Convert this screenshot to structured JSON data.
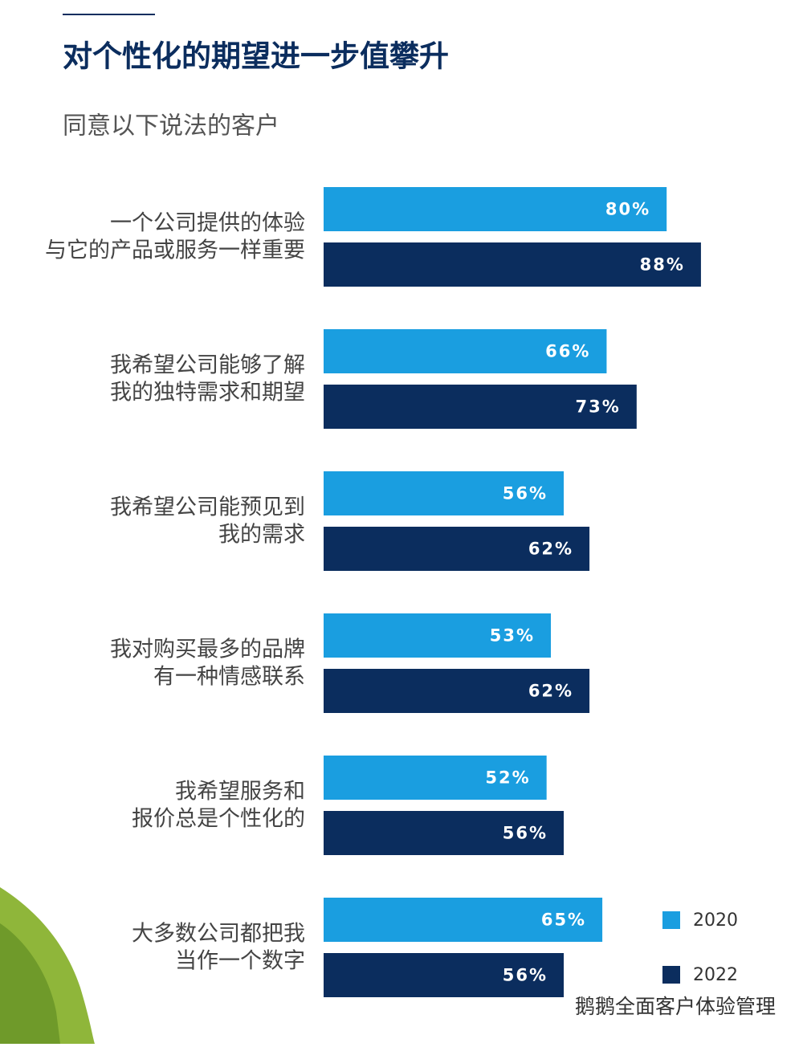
{
  "chart_data": {
    "type": "bar",
    "orientation": "horizontal",
    "title": "对个性化的期望进一步值攀升",
    "subtitle": "同意以下说法的客户",
    "categories": [
      [
        "一个公司提供的体验",
        "与它的产品或服务一样重要"
      ],
      [
        "我希望公司能够了解",
        "我的独特需求和期望"
      ],
      [
        "我希望公司能预见到",
        "我的需求"
      ],
      [
        "我对购买最多的品牌",
        "有一种情感联系"
      ],
      [
        "我希望服务和",
        "报价总是个性化的"
      ],
      [
        "大多数公司都把我",
        "当作一个数字"
      ]
    ],
    "series": [
      {
        "name": "2020",
        "color": "#1a9ee0",
        "values": [
          80,
          66,
          56,
          53,
          52,
          65
        ],
        "value_labels": [
          "80%",
          "66%",
          "56%",
          "53%",
          "52%",
          "65%"
        ]
      },
      {
        "name": "2022",
        "color": "#0b2d5e",
        "values": [
          88,
          73,
          62,
          62,
          56,
          56
        ],
        "value_labels": [
          "88%",
          "73%",
          "62%",
          "62%",
          "56%",
          "56%"
        ]
      }
    ],
    "legend": "bottom-right",
    "watermark": "鹅鹅全面客户体验管理"
  }
}
